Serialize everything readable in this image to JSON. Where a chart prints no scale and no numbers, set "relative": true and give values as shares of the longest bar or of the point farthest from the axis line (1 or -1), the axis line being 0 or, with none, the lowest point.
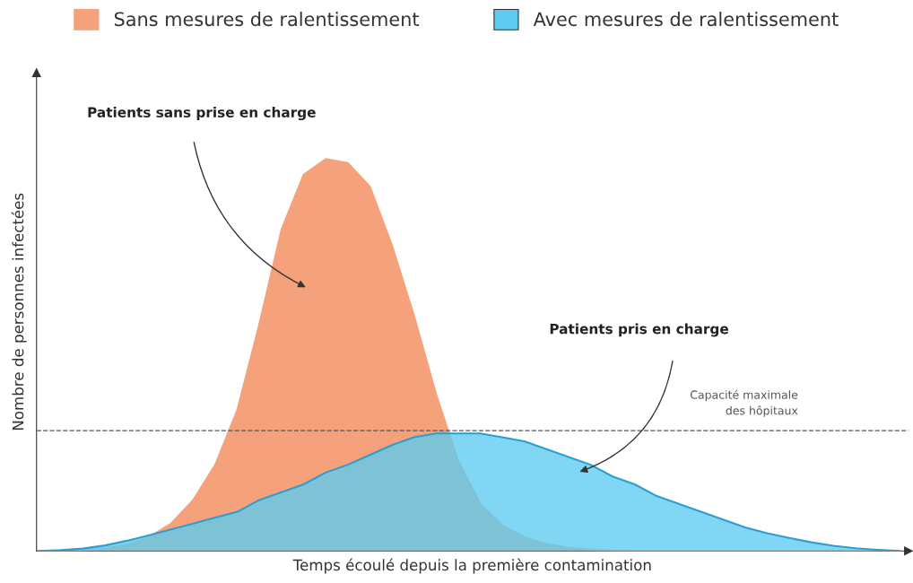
{
  "chart_data": {
    "type": "area",
    "relative": true,
    "xlabel": "Temps écoulé depuis la première contamination",
    "ylabel": "Nombre de personnes infectées",
    "categories": [
      null,
      null,
      null,
      null,
      null,
      null,
      null,
      null,
      null,
      null,
      null,
      null,
      null,
      null,
      null,
      null,
      null,
      null,
      null,
      null,
      null,
      null,
      null,
      null,
      null,
      null,
      null,
      null,
      null,
      null,
      null,
      null,
      null,
      null,
      null,
      null,
      null,
      null,
      null,
      null
    ],
    "series": [
      {
        "name": "Sans mesures de ralentissement",
        "color": "#f5a27c",
        "values": [
          0,
          0,
          0.002,
          0.007,
          0.016,
          0.035,
          0.07,
          0.13,
          0.22,
          0.36,
          0.58,
          0.82,
          0.96,
          1.0,
          0.99,
          0.93,
          0.78,
          0.6,
          0.4,
          0.23,
          0.12,
          0.065,
          0.035,
          0.018,
          0.008,
          0.003,
          0.001,
          0,
          0,
          0,
          0,
          0,
          0,
          0,
          0,
          0,
          0,
          0,
          0,
          0
        ]
      },
      {
        "name": "Avec mesures de ralentissement",
        "color": "#5ccbef",
        "values": [
          0,
          0.002,
          0.006,
          0.014,
          0.026,
          0.04,
          0.055,
          0.07,
          0.085,
          0.1,
          0.13,
          0.15,
          0.17,
          0.2,
          0.22,
          0.245,
          0.27,
          0.29,
          0.3,
          0.3,
          0.3,
          0.29,
          0.28,
          0.26,
          0.24,
          0.22,
          0.19,
          0.17,
          0.14,
          0.12,
          0.1,
          0.08,
          0.06,
          0.045,
          0.033,
          0.022,
          0.013,
          0.007,
          0.003,
          0
        ]
      }
    ],
    "ref_lines": [
      {
        "axis": "y",
        "value": 0.307,
        "label": "Capacité maximale\ndes hôpitaux",
        "color": "#555555",
        "line_style": "dashed"
      }
    ],
    "annotations": [
      "Patients sans prise en charge",
      "Patients pris en charge"
    ],
    "legend": "top"
  }
}
